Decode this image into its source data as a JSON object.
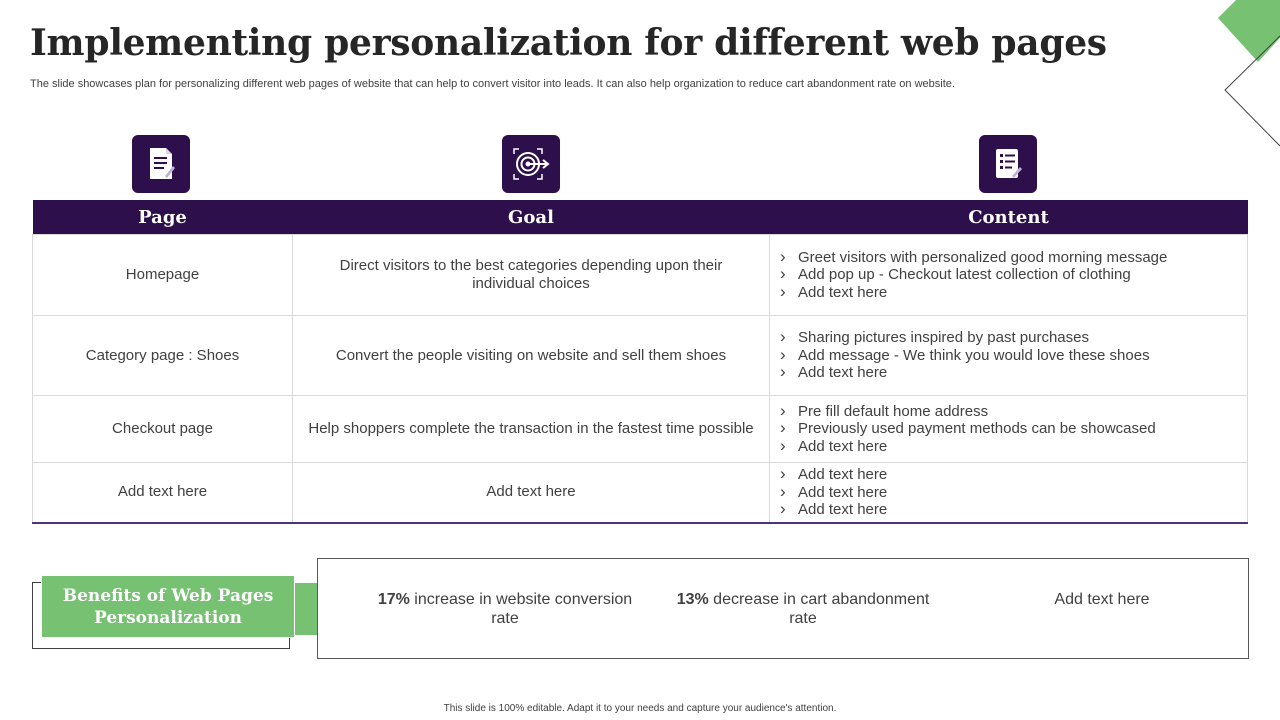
{
  "slide": {
    "title": "Implementing personalization for different web pages",
    "subtitle": "The slide showcases plan for personalizing different web pages of website that can help to convert visitor into leads. It can also help organization to reduce cart abandonment rate on website.",
    "footer": "This slide is 100% editable. Adapt it to your needs and capture your audience's attention."
  },
  "icons": {
    "page": "document-icon",
    "goal": "target-icon",
    "content": "checklist-icon"
  },
  "table": {
    "headers": [
      "Page",
      "Goal",
      "Content"
    ],
    "rows": [
      {
        "page": "Homepage",
        "goal": "Direct visitors to the best categories depending upon their individual choices",
        "content": [
          "Greet visitors with personalized good morning message",
          "Add pop up - Checkout latest collection of clothing",
          "Add text here"
        ]
      },
      {
        "page": "Category page : Shoes",
        "goal": "Convert the people visiting on website and sell them shoes",
        "content": [
          "Sharing pictures inspired by past purchases",
          "Add message - We think you would love these shoes",
          "Add text here"
        ]
      },
      {
        "page": "Checkout page",
        "goal": "Help shoppers complete the transaction in the fastest time possible",
        "content": [
          "Pre fill default home address",
          "Previously used payment methods can be showcased",
          "Add text here"
        ]
      },
      {
        "page": "Add text here",
        "goal": "Add text here",
        "content": [
          "Add text here",
          "Add text here",
          "Add text here"
        ]
      }
    ]
  },
  "benefits": {
    "label": "Benefits of Web Pages Personalization",
    "stats": [
      {
        "value": "17%",
        "text": " increase in website conversion rate"
      },
      {
        "value": "13%",
        "text": " decrease in cart abandonment rate"
      },
      {
        "value": "",
        "text": "Add text here"
      }
    ]
  },
  "colors": {
    "header_purple": "#2d0f4c",
    "accent_green": "#77c173",
    "text_gray": "#404040"
  }
}
